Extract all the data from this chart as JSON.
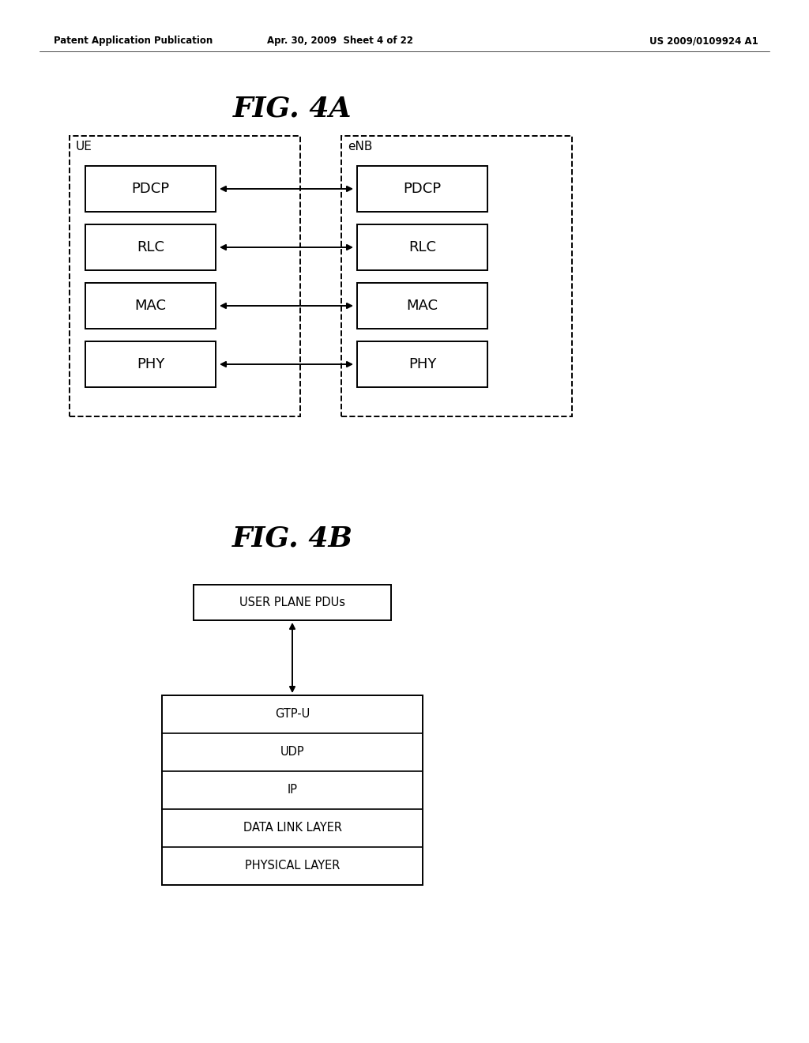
{
  "bg_color": "#ffffff",
  "header_left": "Patent Application Publication",
  "header_mid": "Apr. 30, 2009  Sheet 4 of 22",
  "header_right": "US 2009/0109924 A1",
  "fig4a_title": "FIG. 4A",
  "fig4b_title": "FIG. 4B",
  "ue_label": "UE",
  "enb_label": "eNB",
  "layers_4a": [
    "PDCP",
    "RLC",
    "MAC",
    "PHY"
  ],
  "layers_4b_top": "USER PLANE PDUs",
  "layers_4b_stack": [
    "GTP-U",
    "UDP",
    "IP",
    "DATA LINK LAYER",
    "PHYSICAL LAYER"
  ],
  "header_fontsize": 8.5,
  "title_fontsize": 26,
  "layer_fontsize": 13,
  "label_fontsize": 11,
  "stack_fontsize": 10.5
}
